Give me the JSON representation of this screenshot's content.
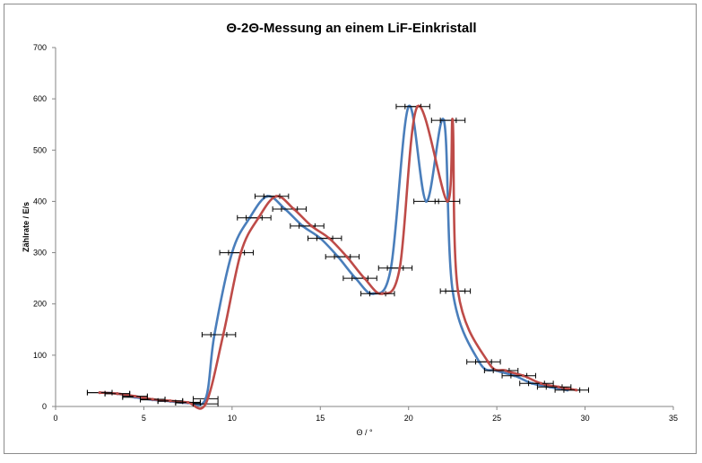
{
  "chart_data": {
    "type": "line",
    "title": "Θ-2Θ-Messung an einem LiF-Einkristall",
    "xlabel": "Θ / °",
    "ylabel": "Zählrate / E/s",
    "xlim": [
      0,
      35
    ],
    "ylim": [
      0,
      700
    ],
    "x_ticks": [
      "0",
      "5",
      "10",
      "15",
      "20",
      "25",
      "30",
      "35"
    ],
    "y_ticks": [
      "0",
      "100",
      "200",
      "300",
      "400",
      "500",
      "600",
      "700"
    ],
    "grid": false,
    "legend": "none",
    "series": [
      {
        "color": "#4a7ebb",
        "x_error": 0.7,
        "points": [
          [
            2.5,
            27
          ],
          [
            3.5,
            25
          ],
          [
            4.5,
            18
          ],
          [
            5.5,
            13
          ],
          [
            6.5,
            10
          ],
          [
            7.5,
            7
          ],
          [
            8.5,
            15
          ],
          [
            9,
            140
          ],
          [
            10,
            300
          ],
          [
            11,
            368
          ],
          [
            12,
            410
          ],
          [
            13,
            385
          ],
          [
            14,
            352
          ],
          [
            15,
            328
          ],
          [
            16,
            292
          ],
          [
            17,
            250
          ],
          [
            18,
            220
          ],
          [
            19,
            270
          ],
          [
            20,
            585
          ],
          [
            21,
            400
          ],
          [
            22,
            558
          ],
          [
            22.5,
            225
          ],
          [
            24,
            87
          ],
          [
            25,
            70
          ],
          [
            26,
            60
          ],
          [
            27,
            45
          ],
          [
            28,
            38
          ],
          [
            29,
            32
          ]
        ]
      },
      {
        "color": "#be4b48",
        "x_error": 0.7,
        "points": [
          [
            2.5,
            27
          ],
          [
            3.5,
            25
          ],
          [
            4.5,
            20
          ],
          [
            5.5,
            14
          ],
          [
            6.5,
            11
          ],
          [
            7.5,
            8
          ],
          [
            8.5,
            5
          ],
          [
            9.5,
            140
          ],
          [
            10.5,
            300
          ],
          [
            11.5,
            368
          ],
          [
            12.5,
            410
          ],
          [
            13.5,
            385
          ],
          [
            14.5,
            352
          ],
          [
            15.5,
            328
          ],
          [
            16.5,
            292
          ],
          [
            17.5,
            250
          ],
          [
            18.5,
            220
          ],
          [
            19.5,
            270
          ],
          [
            20.5,
            585
          ],
          [
            22.2,
            400
          ],
          [
            22.5,
            558
          ],
          [
            22.8,
            225
          ],
          [
            24.5,
            87
          ],
          [
            25.5,
            70
          ],
          [
            26.5,
            60
          ],
          [
            27.5,
            45
          ],
          [
            28.5,
            38
          ],
          [
            29.5,
            32
          ]
        ]
      }
    ]
  }
}
